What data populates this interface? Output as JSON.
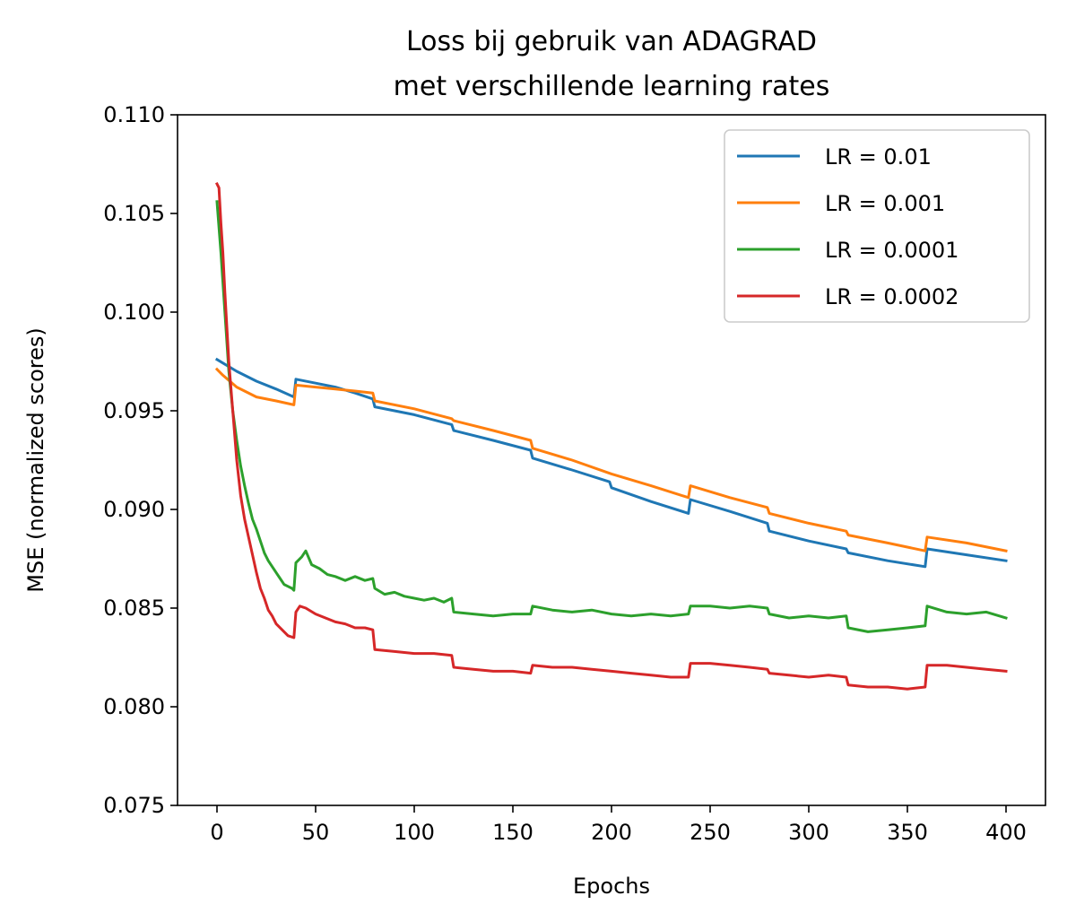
{
  "chart_data": {
    "type": "line",
    "title": [
      "Loss bij gebruik van ADAGRAD",
      "met verschillende learning rates"
    ],
    "xlabel": "Epochs",
    "ylabel": "MSE (normalized scores)",
    "xlim": [
      -20,
      420
    ],
    "ylim": [
      0.075,
      0.11
    ],
    "xticks": [
      0,
      50,
      100,
      150,
      200,
      250,
      300,
      350,
      400
    ],
    "xtick_labels": [
      "0",
      "50",
      "100",
      "150",
      "200",
      "250",
      "300",
      "350",
      "400"
    ],
    "yticks": [
      0.075,
      0.08,
      0.085,
      0.09,
      0.095,
      0.1,
      0.105,
      0.11
    ],
    "ytick_labels": [
      "0.075",
      "0.080",
      "0.085",
      "0.090",
      "0.095",
      "0.100",
      "0.105",
      "0.110"
    ],
    "grid": false,
    "legend_position": "top-right",
    "series": [
      {
        "name": "LR = 0.01",
        "color": "#1f77b4",
        "points": [
          [
            0,
            0.0976
          ],
          [
            10,
            0.097
          ],
          [
            20,
            0.0965
          ],
          [
            30,
            0.0961
          ],
          [
            39,
            0.0957
          ],
          [
            40,
            0.0966
          ],
          [
            50,
            0.0964
          ],
          [
            60,
            0.0962
          ],
          [
            70,
            0.0959
          ],
          [
            79,
            0.0956
          ],
          [
            80,
            0.0952
          ],
          [
            100,
            0.0948
          ],
          [
            119,
            0.0943
          ],
          [
            120,
            0.094
          ],
          [
            140,
            0.0935
          ],
          [
            159,
            0.093
          ],
          [
            160,
            0.0926
          ],
          [
            180,
            0.092
          ],
          [
            199,
            0.0914
          ],
          [
            200,
            0.0911
          ],
          [
            220,
            0.0904
          ],
          [
            239,
            0.0898
          ],
          [
            240,
            0.0905
          ],
          [
            260,
            0.0899
          ],
          [
            279,
            0.0893
          ],
          [
            280,
            0.0889
          ],
          [
            300,
            0.0884
          ],
          [
            319,
            0.088
          ],
          [
            320,
            0.0878
          ],
          [
            340,
            0.0874
          ],
          [
            359,
            0.0871
          ],
          [
            360,
            0.088
          ],
          [
            380,
            0.0877
          ],
          [
            400,
            0.0874
          ]
        ]
      },
      {
        "name": "LR = 0.001",
        "color": "#ff7f0e",
        "points": [
          [
            0,
            0.0971
          ],
          [
            3,
            0.0968
          ],
          [
            10,
            0.0962
          ],
          [
            20,
            0.0957
          ],
          [
            30,
            0.0955
          ],
          [
            39,
            0.0953
          ],
          [
            40,
            0.0963
          ],
          [
            50,
            0.0962
          ],
          [
            60,
            0.0961
          ],
          [
            70,
            0.096
          ],
          [
            79,
            0.0959
          ],
          [
            80,
            0.0955
          ],
          [
            100,
            0.0951
          ],
          [
            119,
            0.0946
          ],
          [
            120,
            0.0945
          ],
          [
            140,
            0.094
          ],
          [
            159,
            0.0935
          ],
          [
            160,
            0.0931
          ],
          [
            180,
            0.0925
          ],
          [
            200,
            0.0918
          ],
          [
            220,
            0.0912
          ],
          [
            239,
            0.0906
          ],
          [
            240,
            0.0912
          ],
          [
            260,
            0.0906
          ],
          [
            279,
            0.0901
          ],
          [
            280,
            0.0898
          ],
          [
            300,
            0.0893
          ],
          [
            319,
            0.0889
          ],
          [
            320,
            0.0887
          ],
          [
            340,
            0.0883
          ],
          [
            359,
            0.0879
          ],
          [
            360,
            0.0886
          ],
          [
            380,
            0.0883
          ],
          [
            400,
            0.0879
          ]
        ]
      },
      {
        "name": "LR = 0.0001",
        "color": "#2ca02c",
        "points": [
          [
            0,
            0.1056
          ],
          [
            2,
            0.103
          ],
          [
            4,
            0.1
          ],
          [
            6,
            0.097
          ],
          [
            8,
            0.095
          ],
          [
            10,
            0.0935
          ],
          [
            12,
            0.0922
          ],
          [
            14,
            0.0912
          ],
          [
            16,
            0.0903
          ],
          [
            18,
            0.0895
          ],
          [
            20,
            0.089
          ],
          [
            22,
            0.0884
          ],
          [
            24,
            0.0878
          ],
          [
            26,
            0.0874
          ],
          [
            28,
            0.0871
          ],
          [
            30,
            0.0868
          ],
          [
            32,
            0.0865
          ],
          [
            34,
            0.0862
          ],
          [
            36,
            0.0861
          ],
          [
            38,
            0.086
          ],
          [
            39,
            0.0859
          ],
          [
            40,
            0.0873
          ],
          [
            43,
            0.0876
          ],
          [
            45,
            0.0879
          ],
          [
            48,
            0.0872
          ],
          [
            52,
            0.087
          ],
          [
            56,
            0.0867
          ],
          [
            60,
            0.0866
          ],
          [
            65,
            0.0864
          ],
          [
            70,
            0.0866
          ],
          [
            75,
            0.0864
          ],
          [
            79,
            0.0865
          ],
          [
            80,
            0.086
          ],
          [
            85,
            0.0857
          ],
          [
            90,
            0.0858
          ],
          [
            95,
            0.0856
          ],
          [
            100,
            0.0855
          ],
          [
            105,
            0.0854
          ],
          [
            110,
            0.0855
          ],
          [
            115,
            0.0853
          ],
          [
            119,
            0.0855
          ],
          [
            120,
            0.0848
          ],
          [
            130,
            0.0847
          ],
          [
            140,
            0.0846
          ],
          [
            150,
            0.0847
          ],
          [
            159,
            0.0847
          ],
          [
            160,
            0.0851
          ],
          [
            170,
            0.0849
          ],
          [
            180,
            0.0848
          ],
          [
            190,
            0.0849
          ],
          [
            200,
            0.0847
          ],
          [
            210,
            0.0846
          ],
          [
            220,
            0.0847
          ],
          [
            230,
            0.0846
          ],
          [
            239,
            0.0847
          ],
          [
            240,
            0.0851
          ],
          [
            250,
            0.0851
          ],
          [
            260,
            0.085
          ],
          [
            270,
            0.0851
          ],
          [
            279,
            0.085
          ],
          [
            280,
            0.0847
          ],
          [
            290,
            0.0845
          ],
          [
            300,
            0.0846
          ],
          [
            310,
            0.0845
          ],
          [
            319,
            0.0846
          ],
          [
            320,
            0.084
          ],
          [
            330,
            0.0838
          ],
          [
            340,
            0.0839
          ],
          [
            350,
            0.084
          ],
          [
            359,
            0.0841
          ],
          [
            360,
            0.0851
          ],
          [
            370,
            0.0848
          ],
          [
            380,
            0.0847
          ],
          [
            390,
            0.0848
          ],
          [
            400,
            0.0845
          ]
        ]
      },
      {
        "name": "LR = 0.0002",
        "color": "#d62728",
        "points": [
          [
            0,
            0.1065
          ],
          [
            1,
            0.1063
          ],
          [
            2,
            0.1045
          ],
          [
            3,
            0.103
          ],
          [
            4,
            0.101
          ],
          [
            6,
            0.0975
          ],
          [
            8,
            0.095
          ],
          [
            10,
            0.0925
          ],
          [
            12,
            0.0907
          ],
          [
            14,
            0.0895
          ],
          [
            16,
            0.0886
          ],
          [
            18,
            0.0877
          ],
          [
            20,
            0.0868
          ],
          [
            22,
            0.086
          ],
          [
            24,
            0.0855
          ],
          [
            26,
            0.0849
          ],
          [
            28,
            0.0846
          ],
          [
            30,
            0.0842
          ],
          [
            33,
            0.0839
          ],
          [
            36,
            0.0836
          ],
          [
            39,
            0.0835
          ],
          [
            40,
            0.0848
          ],
          [
            42,
            0.0851
          ],
          [
            45,
            0.085
          ],
          [
            50,
            0.0847
          ],
          [
            55,
            0.0845
          ],
          [
            60,
            0.0843
          ],
          [
            65,
            0.0842
          ],
          [
            70,
            0.084
          ],
          [
            75,
            0.084
          ],
          [
            79,
            0.0839
          ],
          [
            80,
            0.0829
          ],
          [
            90,
            0.0828
          ],
          [
            100,
            0.0827
          ],
          [
            110,
            0.0827
          ],
          [
            119,
            0.0826
          ],
          [
            120,
            0.082
          ],
          [
            130,
            0.0819
          ],
          [
            140,
            0.0818
          ],
          [
            150,
            0.0818
          ],
          [
            159,
            0.0817
          ],
          [
            160,
            0.0821
          ],
          [
            170,
            0.082
          ],
          [
            180,
            0.082
          ],
          [
            190,
            0.0819
          ],
          [
            200,
            0.0818
          ],
          [
            210,
            0.0817
          ],
          [
            220,
            0.0816
          ],
          [
            230,
            0.0815
          ],
          [
            239,
            0.0815
          ],
          [
            240,
            0.0822
          ],
          [
            250,
            0.0822
          ],
          [
            260,
            0.0821
          ],
          [
            270,
            0.082
          ],
          [
            279,
            0.0819
          ],
          [
            280,
            0.0817
          ],
          [
            290,
            0.0816
          ],
          [
            300,
            0.0815
          ],
          [
            310,
            0.0816
          ],
          [
            319,
            0.0815
          ],
          [
            320,
            0.0811
          ],
          [
            330,
            0.081
          ],
          [
            340,
            0.081
          ],
          [
            350,
            0.0809
          ],
          [
            359,
            0.081
          ],
          [
            360,
            0.0821
          ],
          [
            370,
            0.0821
          ],
          [
            380,
            0.082
          ],
          [
            390,
            0.0819
          ],
          [
            400,
            0.0818
          ]
        ]
      }
    ]
  }
}
